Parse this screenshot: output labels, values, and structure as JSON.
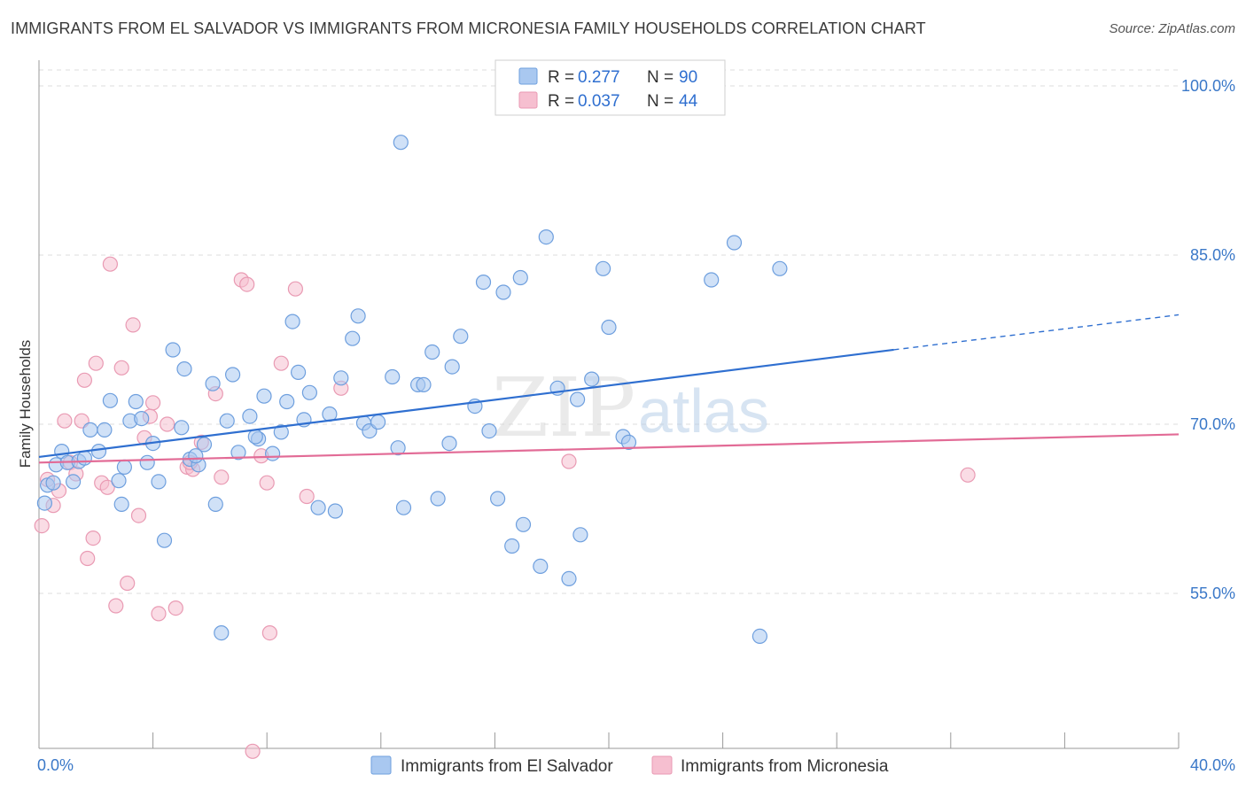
{
  "title": "IMMIGRANTS FROM EL SALVADOR VS IMMIGRANTS FROM MICRONESIA FAMILY HOUSEHOLDS CORRELATION CHART",
  "source": "Source: ZipAtlas.com",
  "watermark": {
    "zip": "ZIP",
    "atlas": "atlas"
  },
  "colors": {
    "blue_fill": "#a9c8f0",
    "blue_stroke": "#6e9fde",
    "blue_line": "#2f6fd0",
    "pink_fill": "#f6bfd0",
    "pink_stroke": "#e99ab3",
    "pink_line": "#e26b96",
    "tick_color": "#3a78c8",
    "grid": "#dcdcdc"
  },
  "legend": {
    "rows": [
      {
        "r_label": "R = ",
        "r_value": "0.277",
        "n_label": "N = ",
        "n_value": "90"
      },
      {
        "r_label": "R = ",
        "r_value": "0.037",
        "n_label": "N = ",
        "n_value": "44"
      }
    ]
  },
  "chart_data": {
    "type": "scatter",
    "title": "IMMIGRANTS FROM EL SALVADOR VS IMMIGRANTS FROM MICRONESIA FAMILY HOUSEHOLDS CORRELATION CHART",
    "xlabel": "",
    "ylabel": "Family Households",
    "xlim": [
      0,
      40
    ],
    "ylim": [
      40,
      102
    ],
    "x_tick_labels": [
      "0.0%",
      "40.0%"
    ],
    "y_ticks": [
      55,
      70,
      85,
      100
    ],
    "y_tick_labels": [
      "55.0%",
      "70.0%",
      "85.0%",
      "100.0%"
    ],
    "grid": true,
    "legend_position": "top-center",
    "series": [
      {
        "name": "Immigrants from El Salvador",
        "color": "#a9c8f0",
        "trend": {
          "x": [
            0,
            30
          ],
          "y": [
            67.1,
            76.6
          ],
          "dashed_to": [
            40,
            79.7
          ]
        },
        "points": [
          [
            0.3,
            64.6
          ],
          [
            0.5,
            64.8
          ],
          [
            0.6,
            66.4
          ],
          [
            0.8,
            67.6
          ],
          [
            1.0,
            66.6
          ],
          [
            1.2,
            64.9
          ],
          [
            1.4,
            66.7
          ],
          [
            1.8,
            69.5
          ],
          [
            2.1,
            67.6
          ],
          [
            2.3,
            69.5
          ],
          [
            2.5,
            72.1
          ],
          [
            2.8,
            65.0
          ],
          [
            2.9,
            62.9
          ],
          [
            3.2,
            70.3
          ],
          [
            3.4,
            72.0
          ],
          [
            3.6,
            70.5
          ],
          [
            3.8,
            66.6
          ],
          [
            4.0,
            68.3
          ],
          [
            4.2,
            64.9
          ],
          [
            4.4,
            59.7
          ],
          [
            4.7,
            76.6
          ],
          [
            5.0,
            69.7
          ],
          [
            5.1,
            74.9
          ],
          [
            5.3,
            66.9
          ],
          [
            5.6,
            66.4
          ],
          [
            5.8,
            68.2
          ],
          [
            6.1,
            73.6
          ],
          [
            6.2,
            62.9
          ],
          [
            6.4,
            51.5
          ],
          [
            6.6,
            70.3
          ],
          [
            6.8,
            74.4
          ],
          [
            7.0,
            67.5
          ],
          [
            7.4,
            70.7
          ],
          [
            7.7,
            68.7
          ],
          [
            7.9,
            72.5
          ],
          [
            8.2,
            67.4
          ],
          [
            8.5,
            69.3
          ],
          [
            8.7,
            72.0
          ],
          [
            8.9,
            79.1
          ],
          [
            9.1,
            74.6
          ],
          [
            9.3,
            70.4
          ],
          [
            9.5,
            72.8
          ],
          [
            9.8,
            62.6
          ],
          [
            10.2,
            70.9
          ],
          [
            10.4,
            62.3
          ],
          [
            10.6,
            74.1
          ],
          [
            11.0,
            77.6
          ],
          [
            11.2,
            79.6
          ],
          [
            11.4,
            70.1
          ],
          [
            11.6,
            69.4
          ],
          [
            11.9,
            70.2
          ],
          [
            12.4,
            74.2
          ],
          [
            12.6,
            67.9
          ],
          [
            12.8,
            62.6
          ],
          [
            13.3,
            73.5
          ],
          [
            13.5,
            73.5
          ],
          [
            13.8,
            76.4
          ],
          [
            14.0,
            63.4
          ],
          [
            14.4,
            68.3
          ],
          [
            14.5,
            75.1
          ],
          [
            14.8,
            77.8
          ],
          [
            15.3,
            71.6
          ],
          [
            15.6,
            82.6
          ],
          [
            15.8,
            69.4
          ],
          [
            16.1,
            63.4
          ],
          [
            16.3,
            81.7
          ],
          [
            16.6,
            59.2
          ],
          [
            16.9,
            83.0
          ],
          [
            17.0,
            61.1
          ],
          [
            17.6,
            57.4
          ],
          [
            17.8,
            86.6
          ],
          [
            18.2,
            73.2
          ],
          [
            18.6,
            56.3
          ],
          [
            18.9,
            72.2
          ],
          [
            19.0,
            60.2
          ],
          [
            19.4,
            74.0
          ],
          [
            19.8,
            83.8
          ],
          [
            20.0,
            78.6
          ],
          [
            20.5,
            68.9
          ],
          [
            20.7,
            68.4
          ],
          [
            23.6,
            82.8
          ],
          [
            24.4,
            86.1
          ],
          [
            25.3,
            51.2
          ],
          [
            26.0,
            83.8
          ],
          [
            12.7,
            95.0
          ],
          [
            1.6,
            67.0
          ],
          [
            3.0,
            66.2
          ],
          [
            5.5,
            67.2
          ],
          [
            7.6,
            68.9
          ],
          [
            0.2,
            63.0
          ]
        ]
      },
      {
        "name": "Immigrants from Micronesia",
        "color": "#f6bfd0",
        "trend": {
          "x": [
            0,
            40
          ],
          "y": [
            66.6,
            69.1
          ]
        },
        "points": [
          [
            0.1,
            61.0
          ],
          [
            0.3,
            65.1
          ],
          [
            0.5,
            62.8
          ],
          [
            0.7,
            64.1
          ],
          [
            0.9,
            70.3
          ],
          [
            1.1,
            66.6
          ],
          [
            1.3,
            65.6
          ],
          [
            1.5,
            70.3
          ],
          [
            1.6,
            73.9
          ],
          [
            1.7,
            58.1
          ],
          [
            1.9,
            59.9
          ],
          [
            2.0,
            75.4
          ],
          [
            2.2,
            64.8
          ],
          [
            2.4,
            64.4
          ],
          [
            2.5,
            84.2
          ],
          [
            2.7,
            53.9
          ],
          [
            2.9,
            75.0
          ],
          [
            3.1,
            55.9
          ],
          [
            3.3,
            78.8
          ],
          [
            3.5,
            61.9
          ],
          [
            3.7,
            68.8
          ],
          [
            3.9,
            70.7
          ],
          [
            4.0,
            71.9
          ],
          [
            4.2,
            53.2
          ],
          [
            4.5,
            70.0
          ],
          [
            4.8,
            53.7
          ],
          [
            5.2,
            66.2
          ],
          [
            5.4,
            66.0
          ],
          [
            5.7,
            68.4
          ],
          [
            6.2,
            72.7
          ],
          [
            6.4,
            65.3
          ],
          [
            7.1,
            82.8
          ],
          [
            7.3,
            82.4
          ],
          [
            7.5,
            41.0
          ],
          [
            7.8,
            67.2
          ],
          [
            8.0,
            64.8
          ],
          [
            8.1,
            51.5
          ],
          [
            8.5,
            75.4
          ],
          [
            9.0,
            82.0
          ],
          [
            9.4,
            63.6
          ],
          [
            10.6,
            73.2
          ],
          [
            18.6,
            66.7
          ],
          [
            32.6,
            65.5
          ],
          [
            5.3,
            66.6
          ]
        ]
      }
    ]
  },
  "bottom_legend": {
    "items": [
      "Immigrants from El Salvador",
      "Immigrants from Micronesia"
    ]
  }
}
